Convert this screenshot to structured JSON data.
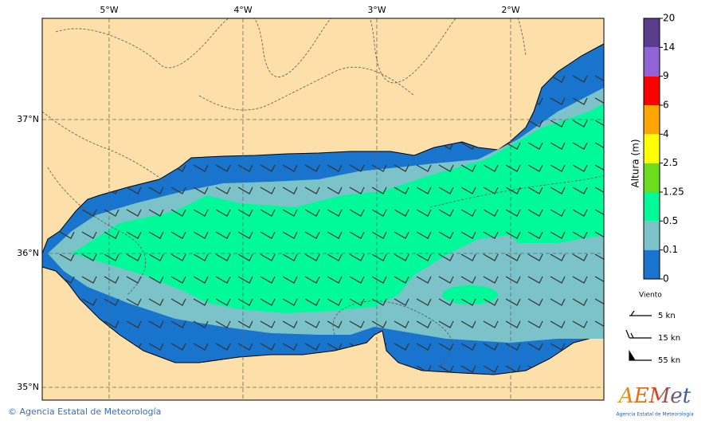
{
  "map": {
    "lon_labels": [
      "5°W",
      "4°W",
      "3°W",
      "2°W"
    ],
    "lat_labels": [
      "37°N",
      "36°N",
      "35°N"
    ]
  },
  "colorbar": {
    "title": "Altura (m)",
    "levels": [
      0,
      0.1,
      0.5,
      1.25,
      2.5,
      4,
      6,
      9,
      14,
      20
    ],
    "colors": [
      "#1874cd",
      "#7cc2c9",
      "#00fa9a",
      "#6bdc1e",
      "#ffff00",
      "#ffa500",
      "#ff0000",
      "#9064d6",
      "#5a3c8c"
    ]
  },
  "legend": {
    "title": "Viento",
    "items": [
      "5 kn",
      "15 kn",
      "55 kn"
    ]
  },
  "footer": {
    "credit": "© Agencia Estatal de Meteorología"
  },
  "logo": {
    "name": "AEMet",
    "subtitle": "Agencia Estatal de Meteorología"
  }
}
